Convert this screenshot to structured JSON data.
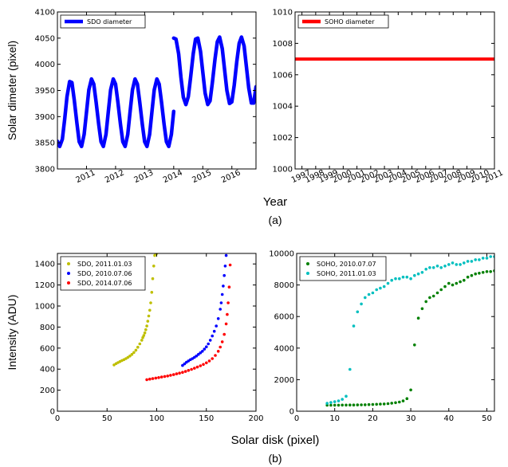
{
  "figure": {
    "xlabel_top": "Year",
    "caption_a": "(a)",
    "xlabel_bottom": "Solar disk (pixel)",
    "caption_b": "(b)"
  },
  "chart_data": [
    {
      "id": "a-left",
      "type": "line",
      "xlim": [
        2010.0,
        2016.83
      ],
      "ylim": [
        3800,
        4100
      ],
      "xticks": [
        2011,
        2012,
        2013,
        2014,
        2015,
        2016
      ],
      "xtick_labels": [
        "2011",
        "2012",
        "2013",
        "2014",
        "2015",
        "2016"
      ],
      "yticks": [
        3800,
        3850,
        3900,
        3950,
        4000,
        4050,
        4100
      ],
      "ytick_labels": [
        "3800",
        "3850",
        "3900",
        "3950",
        "4000",
        "4050",
        "4100"
      ],
      "ylabel": "Solar dimeter (pixel)",
      "legend_position": "top-left",
      "series": [
        {
          "name": "SDO diameter",
          "color": "#0000ff",
          "x": [
            2010.0,
            2010.08,
            2010.17,
            2010.25,
            2010.33,
            2010.42,
            2010.5,
            2010.58,
            2010.67,
            2010.75,
            2010.83,
            2010.92,
            2011.0,
            2011.08,
            2011.17,
            2011.25,
            2011.33,
            2011.42,
            2011.5,
            2011.58,
            2011.67,
            2011.75,
            2011.83,
            2011.92,
            2012.0,
            2012.08,
            2012.17,
            2012.25,
            2012.33,
            2012.42,
            2012.5,
            2012.58,
            2012.67,
            2012.75,
            2012.83,
            2012.92,
            2013.0,
            2013.08,
            2013.17,
            2013.25,
            2013.33,
            2013.42,
            2013.5,
            2013.58,
            2013.67,
            2013.75,
            2013.83,
            2013.92,
            2014.0
          ],
          "y": [
            3853,
            3843,
            3857,
            3895,
            3938,
            3967,
            3965,
            3932,
            3888,
            3852,
            3843,
            3866,
            3909,
            3951,
            3972,
            3962,
            3928,
            3885,
            3852,
            3843,
            3866,
            3909,
            3951,
            3972,
            3962,
            3928,
            3885,
            3852,
            3843,
            3866,
            3909,
            3951,
            3972,
            3962,
            3928,
            3885,
            3852,
            3843,
            3866,
            3909,
            3951,
            3972,
            3962,
            3928,
            3885,
            3852,
            3843,
            3866,
            3910
          ]
        },
        {
          "name": "",
          "color": "#0000ff",
          "x": [
            2014.0,
            2014.08,
            2014.17,
            2014.25,
            2014.33,
            2014.42,
            2014.5,
            2014.58,
            2014.67,
            2014.75,
            2014.83,
            2014.92,
            2015.0,
            2015.08,
            2015.17,
            2015.25,
            2015.33,
            2015.42,
            2015.5,
            2015.58,
            2015.67,
            2015.75,
            2015.83,
            2015.92,
            2016.0,
            2016.08,
            2016.17,
            2016.25,
            2016.33,
            2016.42,
            2016.5,
            2016.58,
            2016.67,
            2016.75,
            2016.83
          ],
          "y": [
            4050,
            4048,
            4020,
            3975,
            3937,
            3923,
            3938,
            3975,
            4020,
            4048,
            4050,
            4025,
            3985,
            3945,
            3923,
            3930,
            3965,
            4010,
            4043,
            4052,
            4030,
            3990,
            3950,
            3925,
            3928,
            3960,
            4005,
            4040,
            4052,
            4035,
            3995,
            3955,
            3926,
            3926,
            3957
          ]
        }
      ]
    },
    {
      "id": "a-right",
      "type": "line",
      "xlim": [
        1996.5,
        2011.0
      ],
      "ylim": [
        1000,
        1010
      ],
      "xticks": [
        1997,
        1998,
        1999,
        2000,
        2001,
        2002,
        2003,
        2004,
        2005,
        2006,
        2007,
        2008,
        2009,
        2010,
        2011
      ],
      "xtick_labels": [
        "1997",
        "1998",
        "1999",
        "2000",
        "2001",
        "2002",
        "2003",
        "2004",
        "2005",
        "2006",
        "2007",
        "2008",
        "2009",
        "2010",
        "2011"
      ],
      "yticks": [
        1000,
        1002,
        1004,
        1006,
        1008,
        1010
      ],
      "ytick_labels": [
        "1000",
        "1002",
        "1004",
        "1006",
        "1008",
        "1010"
      ],
      "legend_position": "top-left",
      "series": [
        {
          "name": "SOHO diameter",
          "color": "#ff0000",
          "x": [
            1996.5,
            2011.0
          ],
          "y": [
            1007,
            1007
          ]
        }
      ]
    },
    {
      "id": "b-left",
      "type": "scatter",
      "xlim": [
        0,
        200
      ],
      "ylim": [
        0,
        1500
      ],
      "xticks": [
        0,
        50,
        100,
        150,
        200
      ],
      "xtick_labels": [
        "0",
        "50",
        "100",
        "150",
        "200"
      ],
      "yticks": [
        0,
        200,
        400,
        600,
        800,
        1000,
        1200,
        1400
      ],
      "ytick_labels": [
        "0",
        "200",
        "400",
        "600",
        "800",
        "1000",
        "1200",
        "1400"
      ],
      "ylabel": "Intensity (ADU)",
      "legend_position": "top-left",
      "series": [
        {
          "name": "SDO, 2011.01.03",
          "color": "#bfbf00",
          "x": [
            57,
            59,
            61,
            63,
            65,
            67,
            69,
            71,
            73,
            75,
            77,
            79,
            81,
            83,
            85,
            86,
            87,
            88,
            89,
            90,
            91,
            92,
            93,
            94,
            95,
            96,
            97,
            98,
            99,
            100
          ],
          "y": [
            440,
            452,
            462,
            472,
            482,
            490,
            500,
            512,
            525,
            540,
            558,
            580,
            608,
            640,
            675,
            700,
            720,
            745,
            775,
            810,
            855,
            905,
            960,
            1030,
            1130,
            1260,
            1380,
            1480,
            1500,
            1500
          ]
        },
        {
          "name": "SDO, 2010.07.06",
          "color": "#0000ff",
          "x": [
            126,
            128,
            130,
            132,
            134,
            136,
            138,
            140,
            142,
            144,
            146,
            148,
            150,
            152,
            154,
            156,
            158,
            160,
            162,
            164,
            165,
            166,
            167,
            168,
            169,
            170
          ],
          "y": [
            435,
            450,
            465,
            478,
            490,
            500,
            512,
            525,
            540,
            555,
            570,
            590,
            612,
            640,
            675,
            715,
            760,
            810,
            880,
            970,
            1030,
            1110,
            1190,
            1290,
            1380,
            1480
          ]
        },
        {
          "name": "SDO, 2014.07.06",
          "color": "#ff0000",
          "x": [
            90,
            93,
            96,
            99,
            102,
            105,
            108,
            111,
            114,
            117,
            120,
            123,
            126,
            129,
            132,
            135,
            138,
            141,
            144,
            147,
            150,
            153,
            156,
            159,
            162,
            164,
            166,
            168,
            170,
            171,
            172,
            173,
            174
          ],
          "y": [
            300,
            305,
            310,
            315,
            320,
            325,
            330,
            335,
            342,
            348,
            355,
            362,
            370,
            378,
            388,
            398,
            408,
            420,
            432,
            445,
            460,
            478,
            500,
            530,
            570,
            610,
            660,
            730,
            830,
            920,
            1030,
            1180,
            1390
          ]
        }
      ]
    },
    {
      "id": "b-right",
      "type": "scatter",
      "xlim": [
        0,
        52
      ],
      "ylim": [
        0,
        10000
      ],
      "xticks": [
        0,
        10,
        20,
        30,
        40,
        50
      ],
      "xtick_labels": [
        "0",
        "10",
        "20",
        "30",
        "40",
        "50"
      ],
      "yticks": [
        0,
        2000,
        4000,
        6000,
        8000,
        10000
      ],
      "ytick_labels": [
        "0",
        "2000",
        "4000",
        "6000",
        "8000",
        "10000"
      ],
      "legend_position": "top-left",
      "series": [
        {
          "name": "SOHO, 2010.07.07",
          "color": "#008000",
          "x": [
            8,
            9,
            10,
            11,
            12,
            13,
            14,
            15,
            16,
            17,
            18,
            19,
            20,
            21,
            22,
            23,
            24,
            25,
            26,
            27,
            28,
            29,
            30,
            31,
            32,
            33,
            34,
            35,
            36,
            37,
            38,
            39,
            40,
            41,
            42,
            43,
            44,
            45,
            46,
            47,
            48,
            49,
            50,
            51,
            52
          ],
          "y": [
            380,
            380,
            385,
            385,
            390,
            390,
            395,
            395,
            400,
            405,
            410,
            420,
            430,
            440,
            450,
            460,
            480,
            510,
            540,
            580,
            650,
            800,
            1350,
            4200,
            5900,
            6500,
            6950,
            7200,
            7300,
            7500,
            7700,
            7900,
            8100,
            8000,
            8100,
            8200,
            8300,
            8500,
            8600,
            8700,
            8750,
            8800,
            8850,
            8850,
            8900
          ]
        },
        {
          "name": "SOHO, 2011.01.03",
          "color": "#00bfbf",
          "x": [
            8,
            9,
            10,
            11,
            12,
            13,
            14,
            15,
            16,
            17,
            18,
            19,
            20,
            21,
            22,
            23,
            24,
            25,
            26,
            27,
            28,
            29,
            30,
            31,
            32,
            33,
            34,
            35,
            36,
            37,
            38,
            39,
            40,
            41,
            42,
            43,
            44,
            45,
            46,
            47,
            48,
            49,
            50,
            51,
            52
          ],
          "y": [
            500,
            550,
            600,
            650,
            750,
            950,
            2650,
            5400,
            6300,
            6800,
            7200,
            7400,
            7500,
            7700,
            7800,
            7900,
            8100,
            8300,
            8400,
            8400,
            8500,
            8500,
            8400,
            8600,
            8700,
            8800,
            9000,
            9100,
            9100,
            9200,
            9100,
            9200,
            9300,
            9400,
            9300,
            9300,
            9400,
            9500,
            9500,
            9600,
            9600,
            9700,
            9700,
            9800,
            9800
          ]
        }
      ]
    }
  ]
}
